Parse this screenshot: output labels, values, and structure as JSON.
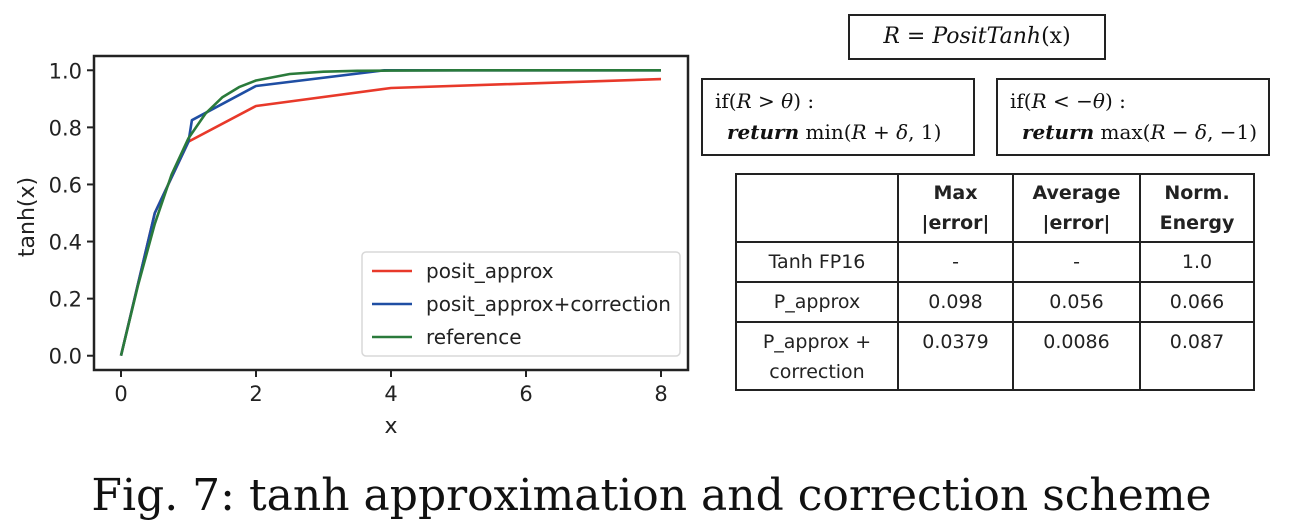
{
  "chart_data": {
    "type": "line",
    "xlabel": "x",
    "ylabel": "tanh(x)",
    "xlim": [
      -0.4,
      8.4
    ],
    "ylim": [
      -0.05,
      1.05
    ],
    "xticks": [
      0,
      2,
      4,
      6,
      8
    ],
    "yticks": [
      0.0,
      0.2,
      0.4,
      0.6,
      0.8,
      1.0
    ],
    "xtick_labels": [
      "0",
      "2",
      "4",
      "6",
      "8"
    ],
    "ytick_labels": [
      "0.0",
      "0.2",
      "0.4",
      "0.6",
      "0.8",
      "1.0"
    ],
    "grid": false,
    "legend_position": "lower-right",
    "series": [
      {
        "name": "posit_approx",
        "color": "#e8392a",
        "x": [
          0,
          0.5,
          1,
          2,
          4,
          8
        ],
        "y": [
          0,
          0.5,
          0.75,
          0.875,
          0.938,
          0.969
        ]
      },
      {
        "name": "posit_approx+correction",
        "color": "#1f4ea3",
        "x": [
          0,
          0.5,
          1,
          1.05,
          2,
          3.9,
          8
        ],
        "y": [
          0,
          0.5,
          0.75,
          0.825,
          0.945,
          1.0,
          1.0
        ]
      },
      {
        "name": "reference",
        "color": "#2a7a3b",
        "x": [
          0,
          0.25,
          0.5,
          0.75,
          1,
          1.25,
          1.5,
          1.75,
          2,
          2.5,
          3,
          3.5,
          4,
          5,
          6,
          8
        ],
        "y": [
          0,
          0.245,
          0.462,
          0.635,
          0.762,
          0.848,
          0.905,
          0.941,
          0.964,
          0.987,
          0.995,
          0.998,
          0.999,
          1.0,
          1.0,
          1.0
        ]
      }
    ]
  },
  "formula": {
    "lhs": "R",
    "eq": " = ",
    "fn": "PositTanh",
    "arg": "(x)"
  },
  "cond_pos": {
    "if_open": "if(",
    "var": "R",
    "op": " > ",
    "th": "θ",
    "if_close": ") :",
    "ret": "return",
    "fn": " min",
    "expr_open": "(",
    "expr_var": "R",
    "plus": " + ",
    "delta": "δ",
    "tail": ", 1)"
  },
  "cond_neg": {
    "if_open": "if(",
    "var": "R",
    "op": " < −",
    "th": "θ",
    "if_close": ") :",
    "ret": "return",
    "fn": " max",
    "expr_open": "(",
    "expr_var": "R",
    "minus": " − ",
    "delta": "δ",
    "tail": ", −1)"
  },
  "table": {
    "headers": [
      "",
      "Max\n|error|",
      "Average\n|error|",
      "Norm.\nEnergy"
    ],
    "rows": [
      [
        "Tanh FP16",
        "-",
        "-",
        "1.0"
      ],
      [
        "P_approx",
        "0.098",
        "0.056",
        "0.066"
      ],
      [
        "P_approx +\ncorrection",
        "0.0379",
        "0.0086",
        "0.087"
      ]
    ]
  },
  "caption": "Fig. 7: tanh approximation and correction scheme"
}
